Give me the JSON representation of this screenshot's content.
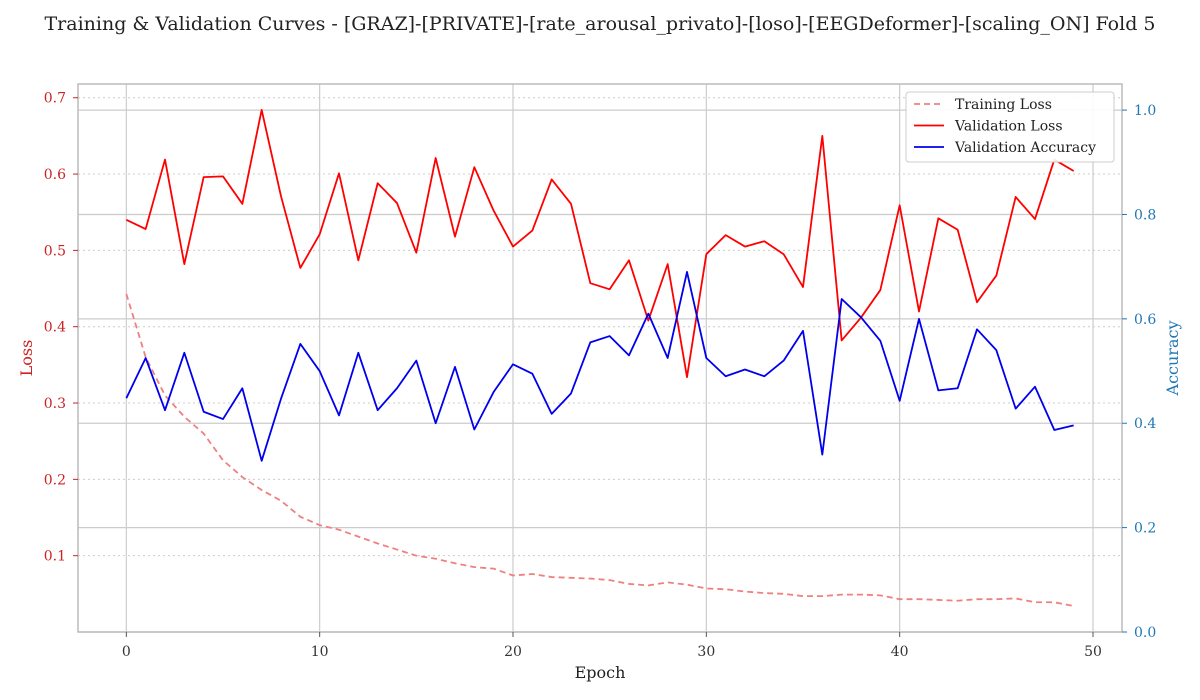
{
  "chart_data": {
    "type": "line",
    "title": "Training & Validation Curves - [GRAZ]-[PRIVATE]-[rate_arousal_privato]-[loso]-[EEGDeformer]-[scaling_ON] Fold 5",
    "xlabel": "Epoch",
    "ylabel_left": "Loss",
    "ylabel_right": "Accuracy",
    "xlim": [
      -2.5,
      51.5
    ],
    "ylim_left": [
      0.0,
      0.718
    ],
    "ylim_right": [
      0.0,
      1.05
    ],
    "x_ticks": [
      0,
      10,
      20,
      30,
      40,
      50
    ],
    "x_tick_labels": [
      "0",
      "10",
      "20",
      "30",
      "40",
      "50"
    ],
    "y_left_ticks": [
      0.1,
      0.2,
      0.3,
      0.4,
      0.5,
      0.6,
      0.7
    ],
    "y_left_tick_labels": [
      "0.1",
      "0.2",
      "0.3",
      "0.4",
      "0.5",
      "0.6",
      "0.7"
    ],
    "y_right_ticks": [
      0.0,
      0.2,
      0.4,
      0.6,
      0.8,
      1.0
    ],
    "y_right_tick_labels": [
      "0.0",
      "0.2",
      "0.4",
      "0.6",
      "0.8",
      "1.0"
    ],
    "grid": true,
    "legend_position": "top-right",
    "colors": {
      "training_loss": "#f08080",
      "validation_loss": "#ff0000",
      "validation_accuracy": "#0000ee",
      "left_axis": "#cc2222",
      "right_axis": "#1f77b4",
      "grid": "#cccccc",
      "frame": "#bbbbbb"
    },
    "x": [
      0,
      1,
      2,
      3,
      4,
      5,
      6,
      7,
      8,
      9,
      10,
      11,
      12,
      13,
      14,
      15,
      16,
      17,
      18,
      19,
      20,
      21,
      22,
      23,
      24,
      25,
      26,
      27,
      28,
      29,
      30,
      31,
      32,
      33,
      34,
      35,
      36,
      37,
      38,
      39,
      40,
      41,
      42,
      43,
      44,
      45,
      46,
      47,
      48,
      49
    ],
    "series": [
      {
        "name": "Training Loss",
        "axis": "left",
        "style": "dashed",
        "values": [
          0.443,
          0.36,
          0.31,
          0.282,
          0.26,
          0.225,
          0.203,
          0.186,
          0.172,
          0.151,
          0.14,
          0.134,
          0.125,
          0.116,
          0.108,
          0.1,
          0.096,
          0.09,
          0.085,
          0.083,
          0.074,
          0.076,
          0.072,
          0.071,
          0.07,
          0.068,
          0.063,
          0.061,
          0.065,
          0.062,
          0.057,
          0.056,
          0.053,
          0.051,
          0.05,
          0.047,
          0.047,
          0.049,
          0.049,
          0.048,
          0.043,
          0.043,
          0.042,
          0.041,
          0.043,
          0.043,
          0.044,
          0.039,
          0.039,
          0.034
        ]
      },
      {
        "name": "Validation Loss",
        "axis": "left",
        "style": "solid",
        "values": [
          0.54,
          0.528,
          0.619,
          0.482,
          0.596,
          0.597,
          0.561,
          0.684,
          0.571,
          0.477,
          0.521,
          0.601,
          0.487,
          0.588,
          0.562,
          0.497,
          0.621,
          0.518,
          0.609,
          0.552,
          0.505,
          0.526,
          0.593,
          0.561,
          0.457,
          0.449,
          0.487,
          0.408,
          0.482,
          0.334,
          0.495,
          0.52,
          0.505,
          0.512,
          0.495,
          0.452,
          0.65,
          0.382,
          0.412,
          0.448,
          0.559,
          0.42,
          0.542,
          0.527,
          0.432,
          0.467,
          0.57,
          0.541,
          0.619,
          0.604
        ]
      },
      {
        "name": "Validation Accuracy",
        "axis": "right",
        "style": "solid",
        "values": [
          0.448,
          0.525,
          0.425,
          0.535,
          0.422,
          0.408,
          0.467,
          0.328,
          0.447,
          0.552,
          0.5,
          0.415,
          0.535,
          0.425,
          0.467,
          0.52,
          0.4,
          0.508,
          0.388,
          0.46,
          0.513,
          0.495,
          0.418,
          0.457,
          0.555,
          0.567,
          0.53,
          0.61,
          0.525,
          0.69,
          0.525,
          0.49,
          0.503,
          0.49,
          0.52,
          0.577,
          0.34,
          0.638,
          0.603,
          0.558,
          0.443,
          0.6,
          0.463,
          0.467,
          0.58,
          0.54,
          0.428,
          0.47,
          0.387,
          0.396
        ]
      }
    ]
  }
}
